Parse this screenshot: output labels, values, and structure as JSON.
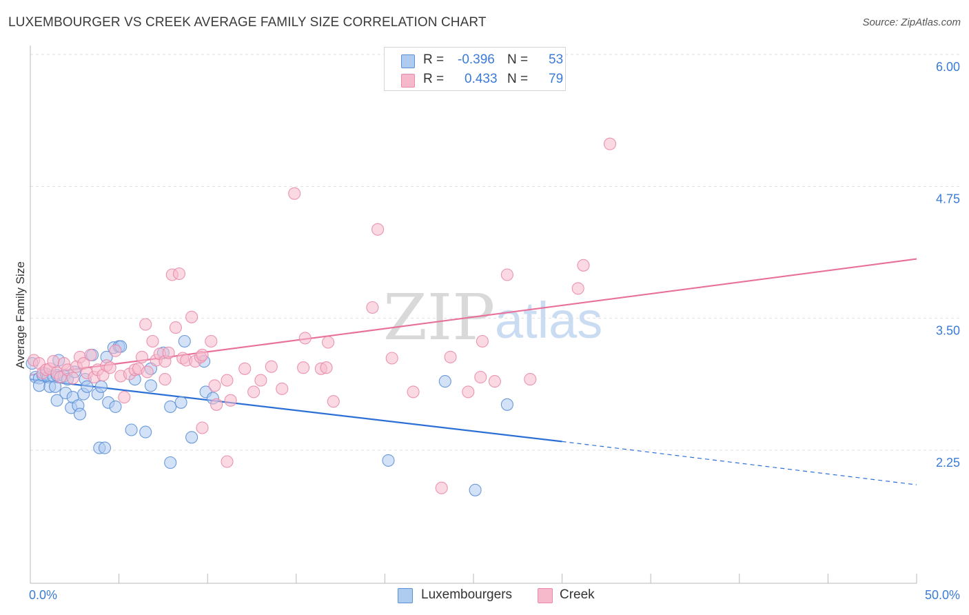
{
  "title": "LUXEMBOURGER VS CREEK AVERAGE FAMILY SIZE CORRELATION CHART",
  "source": "Source: ZipAtlas.com",
  "watermark": {
    "part1": "ZIP",
    "part2": "atlas"
  },
  "colors": {
    "lux_fill": "#aecbf0",
    "lux_stroke": "#5b8fd6",
    "lux_line": "#2b6fd6",
    "creek_fill": "#f6b9cc",
    "creek_stroke": "#e889a8",
    "creek_line": "#e8709a",
    "accent_text": "#3a7bd5",
    "grid": "#dedede"
  },
  "legend": {
    "r_label": "R =",
    "n_label": "N =",
    "rows": [
      {
        "r_value": "-0.396",
        "n_value": "53"
      },
      {
        "r_value": "0.433",
        "n_value": "79"
      }
    ]
  },
  "bottom_legend": [
    "Luxembourgers",
    "Creek"
  ],
  "chart_data": {
    "type": "scatter",
    "title": "LUXEMBOURGER VS CREEK AVERAGE FAMILY SIZE CORRELATION CHART",
    "xlabel": "",
    "ylabel": "Average Family Size",
    "xlim": [
      0,
      50
    ],
    "ylim": [
      1.0,
      6.15
    ],
    "x_tick_labels": [
      "0.0%",
      "50.0%"
    ],
    "y_ticks": [
      2.25,
      3.5,
      4.75,
      6.0
    ],
    "y_tick_labels": [
      "2.25",
      "3.50",
      "4.75",
      "6.00"
    ],
    "grid": "horizontal dashed",
    "legend_position": "top-center",
    "series": [
      {
        "name": "Luxembourgers",
        "r": -0.396,
        "n": 53,
        "points": [
          [
            0.1,
            3.19
          ],
          [
            0.3,
            3.06
          ],
          [
            0.5,
            3.05
          ],
          [
            0.5,
            2.98
          ],
          [
            0.7,
            3.08
          ],
          [
            0.9,
            3.09
          ],
          [
            1.0,
            3.06
          ],
          [
            1.1,
            2.97
          ],
          [
            1.3,
            3.07
          ],
          [
            1.4,
            2.97
          ],
          [
            1.5,
            3.08
          ],
          [
            1.5,
            2.84
          ],
          [
            1.6,
            3.22
          ],
          [
            1.9,
            3.07
          ],
          [
            2.0,
            2.91
          ],
          [
            2.1,
            3.04
          ],
          [
            2.3,
            2.77
          ],
          [
            2.4,
            2.87
          ],
          [
            2.5,
            3.11
          ],
          [
            2.7,
            2.79
          ],
          [
            2.8,
            2.71
          ],
          [
            3.0,
            2.9
          ],
          [
            3.1,
            3.04
          ],
          [
            3.2,
            2.97
          ],
          [
            3.5,
            3.27
          ],
          [
            3.8,
            2.9
          ],
          [
            3.9,
            2.39
          ],
          [
            4.0,
            2.97
          ],
          [
            4.2,
            2.39
          ],
          [
            4.3,
            3.25
          ],
          [
            4.4,
            2.82
          ],
          [
            4.7,
            3.34
          ],
          [
            4.8,
            2.78
          ],
          [
            5.0,
            3.35
          ],
          [
            5.1,
            3.35
          ],
          [
            5.7,
            2.56
          ],
          [
            5.9,
            3.04
          ],
          [
            6.5,
            2.54
          ],
          [
            6.8,
            3.14
          ],
          [
            6.8,
            2.98
          ],
          [
            7.5,
            3.29
          ],
          [
            7.9,
            2.25
          ],
          [
            7.9,
            2.78
          ],
          [
            8.5,
            2.82
          ],
          [
            8.7,
            3.4
          ],
          [
            9.1,
            2.49
          ],
          [
            9.8,
            3.21
          ],
          [
            9.9,
            2.92
          ],
          [
            10.3,
            2.86
          ],
          [
            20.2,
            2.27
          ],
          [
            23.4,
            3.02
          ],
          [
            25.1,
            1.99
          ],
          [
            26.9,
            2.8
          ]
        ]
      },
      {
        "name": "Creek",
        "r": 0.433,
        "n": 79,
        "points": [
          [
            0.2,
            3.22
          ],
          [
            0.5,
            3.19
          ],
          [
            0.7,
            3.1
          ],
          [
            0.9,
            3.13
          ],
          [
            1.1,
            3.14
          ],
          [
            1.3,
            3.21
          ],
          [
            1.5,
            3.1
          ],
          [
            1.7,
            3.06
          ],
          [
            1.9,
            3.19
          ],
          [
            2.1,
            3.13
          ],
          [
            2.4,
            3.05
          ],
          [
            2.6,
            3.16
          ],
          [
            2.8,
            3.25
          ],
          [
            3.0,
            3.19
          ],
          [
            3.2,
            3.1
          ],
          [
            3.4,
            3.27
          ],
          [
            3.6,
            3.06
          ],
          [
            3.8,
            3.13
          ],
          [
            4.1,
            3.08
          ],
          [
            4.3,
            3.17
          ],
          [
            4.5,
            3.15
          ],
          [
            4.8,
            3.31
          ],
          [
            5.1,
            3.07
          ],
          [
            5.3,
            2.87
          ],
          [
            5.6,
            3.09
          ],
          [
            5.9,
            3.13
          ],
          [
            6.1,
            3.14
          ],
          [
            6.3,
            3.25
          ],
          [
            6.5,
            3.56
          ],
          [
            6.6,
            3.11
          ],
          [
            6.9,
            3.4
          ],
          [
            7.1,
            3.22
          ],
          [
            7.3,
            3.28
          ],
          [
            7.6,
            3.04
          ],
          [
            7.6,
            3.21
          ],
          [
            7.8,
            3.29
          ],
          [
            8.0,
            4.03
          ],
          [
            8.2,
            3.53
          ],
          [
            8.4,
            4.04
          ],
          [
            8.6,
            3.24
          ],
          [
            8.8,
            3.22
          ],
          [
            9.1,
            3.63
          ],
          [
            9.3,
            3.21
          ],
          [
            9.6,
            3.25
          ],
          [
            9.7,
            2.58
          ],
          [
            9.7,
            3.27
          ],
          [
            10.2,
            3.4
          ],
          [
            10.4,
            2.98
          ],
          [
            10.5,
            2.8
          ],
          [
            11.1,
            2.26
          ],
          [
            11.1,
            3.03
          ],
          [
            11.3,
            2.84
          ],
          [
            12.1,
            3.14
          ],
          [
            12.6,
            2.92
          ],
          [
            13.0,
            3.03
          ],
          [
            13.6,
            3.16
          ],
          [
            14.2,
            2.95
          ],
          [
            14.9,
            4.8
          ],
          [
            15.4,
            3.15
          ],
          [
            15.5,
            3.43
          ],
          [
            16.4,
            3.14
          ],
          [
            16.7,
            3.15
          ],
          [
            16.8,
            3.39
          ],
          [
            17.1,
            2.83
          ],
          [
            19.3,
            3.72
          ],
          [
            19.6,
            4.46
          ],
          [
            20.4,
            3.24
          ],
          [
            21.6,
            2.92
          ],
          [
            23.2,
            2.01
          ],
          [
            23.7,
            3.25
          ],
          [
            24.7,
            2.92
          ],
          [
            25.4,
            3.06
          ],
          [
            25.5,
            3.4
          ],
          [
            26.2,
            3.02
          ],
          [
            26.9,
            4.03
          ],
          [
            28.2,
            3.04
          ],
          [
            30.9,
            3.9
          ],
          [
            31.2,
            4.12
          ],
          [
            32.7,
            5.27
          ]
        ]
      }
    ],
    "trend_lines": [
      {
        "series": "Luxembourgers",
        "solid": [
          [
            0,
            3.04
          ],
          [
            30,
            2.45
          ]
        ],
        "dashed": [
          [
            30,
            2.45
          ],
          [
            50,
            2.04
          ]
        ]
      },
      {
        "series": "Creek",
        "solid": [
          [
            0,
            3.08
          ],
          [
            50,
            4.18
          ]
        ]
      }
    ]
  }
}
